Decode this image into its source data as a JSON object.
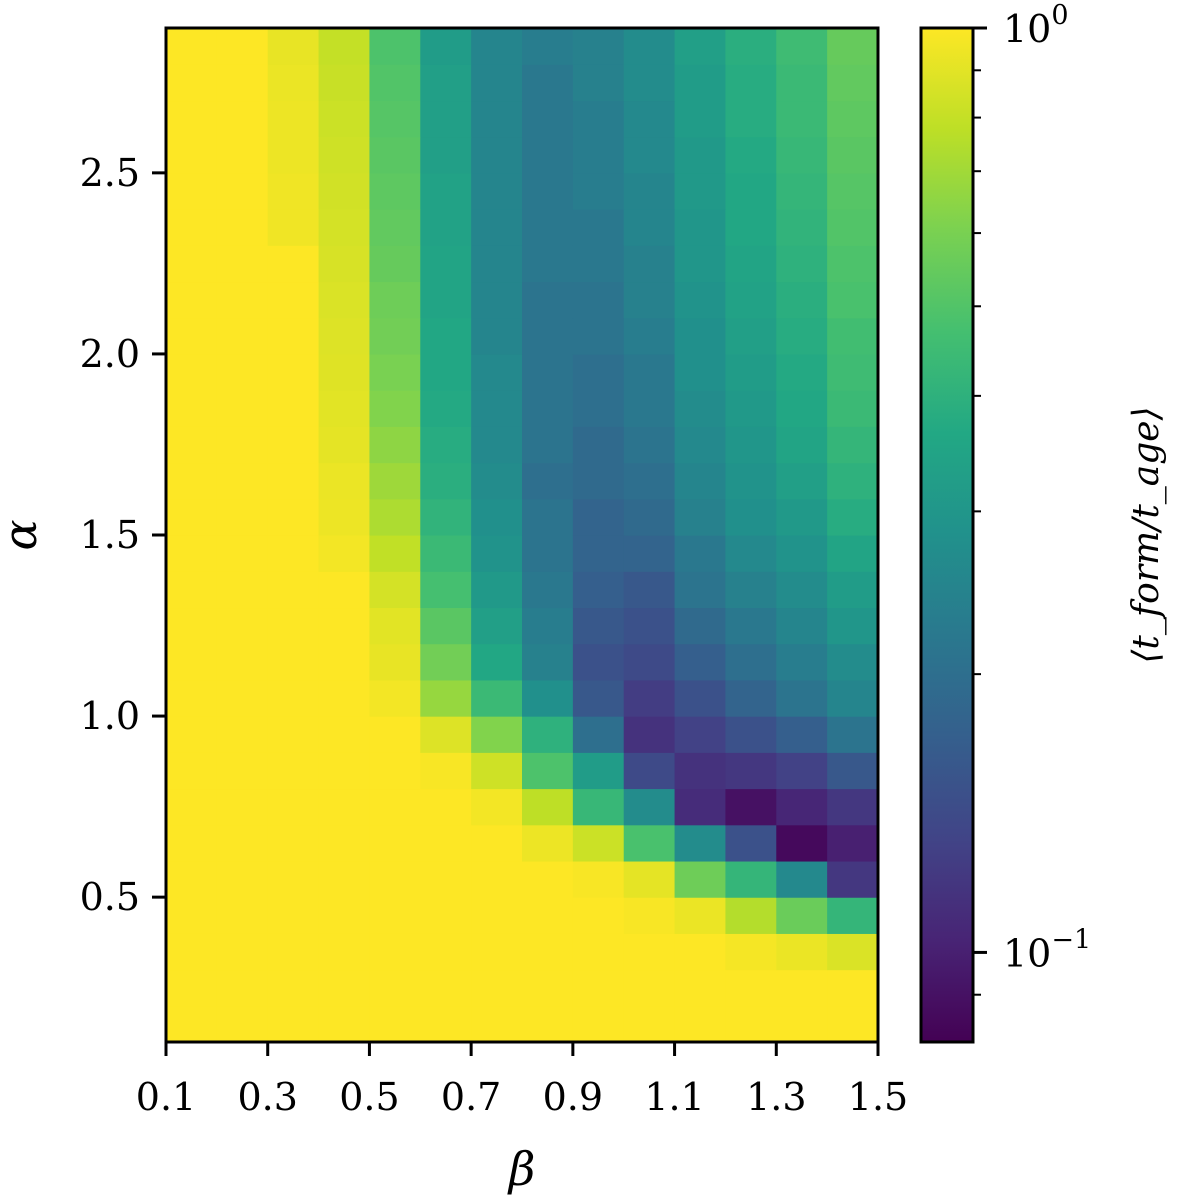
{
  "chart_data": {
    "type": "heatmap",
    "xlabel": "β",
    "ylabel": "α",
    "x_ticks": [
      "0.1",
      "0.3",
      "0.5",
      "0.7",
      "0.9",
      "1.1",
      "1.3",
      "1.5"
    ],
    "y_ticks": [
      "0.5",
      "1.0",
      "1.5",
      "2.0",
      "2.5"
    ],
    "xlim": [
      0.1,
      1.5
    ],
    "ylim": [
      0.1,
      2.9
    ],
    "x": [
      0.15,
      0.25,
      0.35,
      0.45,
      0.55,
      0.65,
      0.75,
      0.85,
      0.95,
      1.05,
      1.15,
      1.25,
      1.35,
      1.45
    ],
    "y": [
      0.15,
      0.25,
      0.35,
      0.45,
      0.55,
      0.65,
      0.75,
      0.85,
      0.95,
      1.05,
      1.15,
      1.25,
      1.35,
      1.45,
      1.55,
      1.65,
      1.75,
      1.85,
      1.95,
      2.05,
      2.15,
      2.25,
      2.35,
      2.45,
      2.55,
      2.65,
      2.75,
      2.85
    ],
    "values": [
      [
        1.0,
        1.0,
        1.0,
        1.0,
        1.0,
        1.0,
        1.0,
        1.0,
        1.0,
        1.0,
        1.0,
        1.0,
        1.0,
        1.0
      ],
      [
        1.0,
        1.0,
        1.0,
        1.0,
        1.0,
        1.0,
        1.0,
        1.0,
        1.0,
        1.0,
        1.0,
        1.0,
        1.0,
        1.0
      ],
      [
        1.0,
        1.0,
        1.0,
        1.0,
        1.0,
        1.0,
        1.0,
        1.0,
        1.0,
        1.0,
        1.0,
        0.97,
        0.93,
        0.87
      ],
      [
        1.0,
        1.0,
        1.0,
        1.0,
        1.0,
        1.0,
        1.0,
        1.0,
        1.0,
        0.98,
        0.93,
        0.75,
        0.56,
        0.42
      ],
      [
        1.0,
        1.0,
        1.0,
        1.0,
        1.0,
        1.0,
        1.0,
        1.0,
        0.98,
        0.91,
        0.57,
        0.42,
        0.26,
        0.12
      ],
      [
        1.0,
        1.0,
        1.0,
        1.0,
        1.0,
        1.0,
        1.0,
        0.94,
        0.82,
        0.48,
        0.27,
        0.15,
        0.085,
        0.1
      ],
      [
        1.0,
        1.0,
        1.0,
        1.0,
        1.0,
        1.0,
        0.96,
        0.78,
        0.43,
        0.27,
        0.11,
        0.09,
        0.105,
        0.12
      ],
      [
        1.0,
        1.0,
        1.0,
        1.0,
        1.0,
        0.98,
        0.83,
        0.49,
        0.32,
        0.14,
        0.115,
        0.12,
        0.13,
        0.16
      ],
      [
        1.0,
        1.0,
        1.0,
        1.0,
        1.0,
        0.88,
        0.62,
        0.4,
        0.2,
        0.115,
        0.13,
        0.15,
        0.17,
        0.21
      ],
      [
        1.0,
        1.0,
        1.0,
        1.0,
        0.96,
        0.67,
        0.44,
        0.28,
        0.16,
        0.125,
        0.15,
        0.18,
        0.21,
        0.25
      ],
      [
        1.0,
        1.0,
        1.0,
        1.0,
        0.92,
        0.58,
        0.36,
        0.24,
        0.15,
        0.14,
        0.17,
        0.2,
        0.23,
        0.27
      ],
      [
        1.0,
        1.0,
        1.0,
        1.0,
        0.9,
        0.52,
        0.33,
        0.23,
        0.16,
        0.15,
        0.19,
        0.22,
        0.25,
        0.3
      ],
      [
        1.0,
        1.0,
        1.0,
        1.0,
        0.85,
        0.47,
        0.31,
        0.22,
        0.17,
        0.16,
        0.21,
        0.24,
        0.27,
        0.32
      ],
      [
        1.0,
        1.0,
        1.0,
        0.96,
        0.79,
        0.44,
        0.29,
        0.21,
        0.18,
        0.18,
        0.22,
        0.26,
        0.29,
        0.35
      ],
      [
        1.0,
        1.0,
        1.0,
        0.94,
        0.73,
        0.41,
        0.28,
        0.21,
        0.18,
        0.19,
        0.24,
        0.28,
        0.31,
        0.38
      ],
      [
        1.0,
        1.0,
        1.0,
        0.93,
        0.69,
        0.39,
        0.27,
        0.2,
        0.19,
        0.2,
        0.25,
        0.29,
        0.33,
        0.4
      ],
      [
        1.0,
        1.0,
        1.0,
        0.91,
        0.65,
        0.38,
        0.26,
        0.21,
        0.19,
        0.21,
        0.26,
        0.3,
        0.35,
        0.42
      ],
      [
        1.0,
        1.0,
        1.0,
        0.9,
        0.62,
        0.37,
        0.26,
        0.21,
        0.2,
        0.22,
        0.27,
        0.31,
        0.36,
        0.44
      ],
      [
        1.0,
        1.0,
        1.0,
        0.89,
        0.6,
        0.36,
        0.26,
        0.21,
        0.2,
        0.22,
        0.28,
        0.32,
        0.37,
        0.45
      ],
      [
        1.0,
        1.0,
        1.0,
        0.88,
        0.58,
        0.36,
        0.25,
        0.21,
        0.21,
        0.23,
        0.28,
        0.33,
        0.38,
        0.46
      ],
      [
        1.0,
        1.0,
        1.0,
        0.87,
        0.57,
        0.35,
        0.25,
        0.21,
        0.21,
        0.24,
        0.29,
        0.34,
        0.39,
        0.48
      ],
      [
        1.0,
        1.0,
        1.0,
        0.86,
        0.55,
        0.35,
        0.25,
        0.22,
        0.22,
        0.24,
        0.3,
        0.35,
        0.4,
        0.49
      ],
      [
        1.0,
        1.0,
        0.95,
        0.85,
        0.54,
        0.34,
        0.25,
        0.22,
        0.22,
        0.25,
        0.3,
        0.36,
        0.41,
        0.5
      ],
      [
        1.0,
        1.0,
        0.95,
        0.84,
        0.53,
        0.34,
        0.25,
        0.22,
        0.23,
        0.25,
        0.31,
        0.36,
        0.42,
        0.51
      ],
      [
        1.0,
        1.0,
        0.94,
        0.83,
        0.52,
        0.33,
        0.25,
        0.22,
        0.23,
        0.26,
        0.31,
        0.37,
        0.43,
        0.52
      ],
      [
        1.0,
        1.0,
        0.94,
        0.82,
        0.51,
        0.33,
        0.25,
        0.22,
        0.23,
        0.26,
        0.32,
        0.38,
        0.44,
        0.53
      ],
      [
        1.0,
        1.0,
        0.93,
        0.81,
        0.5,
        0.33,
        0.25,
        0.22,
        0.24,
        0.27,
        0.32,
        0.38,
        0.44,
        0.54
      ],
      [
        1.0,
        1.0,
        0.92,
        0.8,
        0.49,
        0.32,
        0.25,
        0.23,
        0.24,
        0.27,
        0.33,
        0.39,
        0.45,
        0.55
      ]
    ],
    "colorbar": {
      "scale": "log",
      "range": [
        0.08,
        1.0
      ],
      "colormap": "viridis",
      "label": "⟨t_form/t_age⟩",
      "major_ticks": [
        {
          "value": 1.0,
          "base": "10",
          "exponent": "0"
        },
        {
          "value": 0.1,
          "base": "10",
          "exponent": "−1"
        }
      ],
      "minor_ticks": [
        0.09,
        0.2,
        0.3,
        0.4,
        0.5,
        0.6,
        0.7,
        0.8,
        0.9
      ]
    },
    "grid": false
  }
}
